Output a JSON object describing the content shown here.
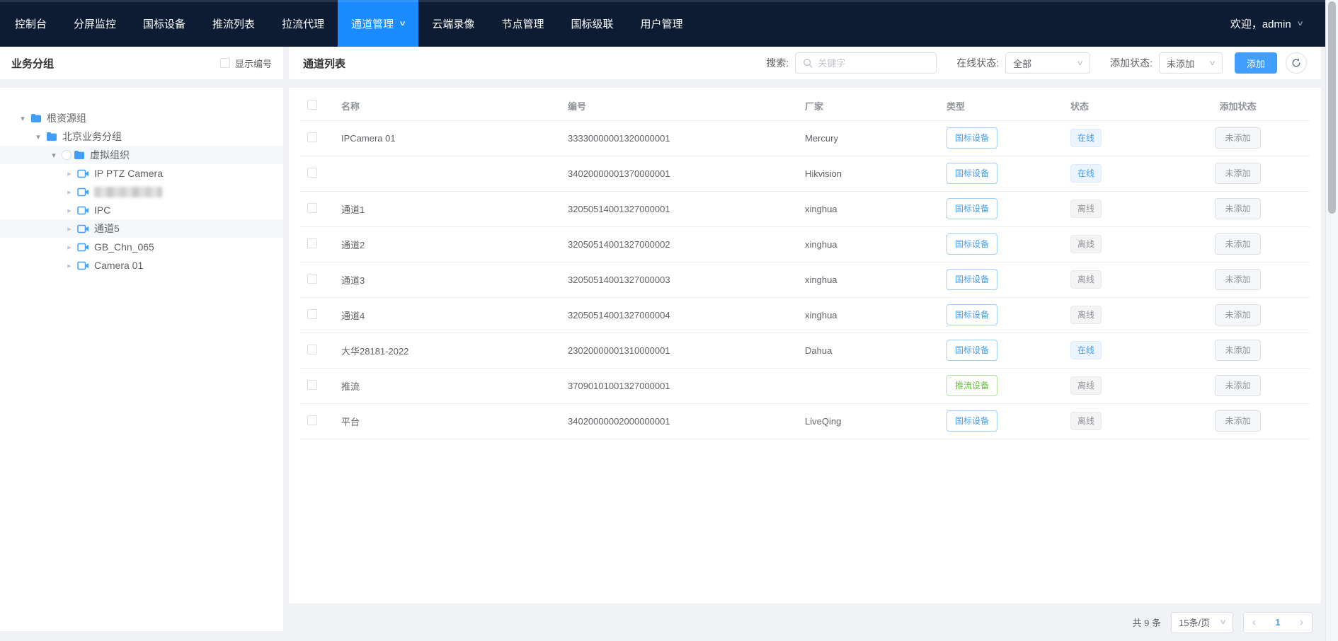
{
  "icons": {
    "chevron_down": "∨",
    "caret_expanded": "▾",
    "caret_collapsed": "▸",
    "prev_arrow": "‹",
    "next_arrow": "›"
  },
  "colors": {
    "accent": "#409eff",
    "nav_bg": "#0d1b33",
    "nav_active": "#1a8cff",
    "success_green": "#67c23a",
    "offline_gray": "#909399",
    "page_bg": "#f0f2f5"
  },
  "nav": {
    "items": [
      {
        "label": "控制台",
        "active": false
      },
      {
        "label": "分屏监控",
        "active": false
      },
      {
        "label": "国标设备",
        "active": false
      },
      {
        "label": "推流列表",
        "active": false
      },
      {
        "label": "拉流代理",
        "active": false
      },
      {
        "label": "通道管理",
        "active": true,
        "has_chevron": true
      },
      {
        "label": "云端录像",
        "active": false
      },
      {
        "label": "节点管理",
        "active": false
      },
      {
        "label": "国标级联",
        "active": false
      },
      {
        "label": "用户管理",
        "active": false
      }
    ],
    "user": {
      "welcome": "欢迎，admin"
    }
  },
  "sidebar": {
    "title": "业务分组",
    "show_number_label": "显示编号",
    "show_number_checked": false,
    "tree": [
      {
        "label": "根资源组",
        "level": 0,
        "kind": "folder",
        "expanded": true,
        "highlighted": false,
        "radio": false,
        "redacted": false
      },
      {
        "label": "北京业务分组",
        "level": 1,
        "kind": "folder",
        "expanded": true,
        "highlighted": false,
        "radio": false,
        "redacted": false
      },
      {
        "label": "虚拟组织",
        "level": 2,
        "kind": "folder",
        "expanded": true,
        "highlighted": true,
        "radio": true,
        "redacted": false
      },
      {
        "label": "IP PTZ Camera",
        "level": 3,
        "kind": "camera",
        "expanded": false,
        "highlighted": false,
        "radio": false,
        "redacted": false
      },
      {
        "label": "",
        "level": 3,
        "kind": "camera",
        "expanded": false,
        "highlighted": false,
        "radio": false,
        "redacted": true
      },
      {
        "label": "IPC",
        "level": 3,
        "kind": "camera",
        "expanded": false,
        "highlighted": false,
        "radio": false,
        "redacted": false
      },
      {
        "label": "通道5",
        "level": 3,
        "kind": "camera",
        "expanded": false,
        "highlighted": true,
        "radio": false,
        "redacted": false
      },
      {
        "label": "GB_Chn_065",
        "level": 3,
        "kind": "camera",
        "expanded": false,
        "highlighted": false,
        "radio": false,
        "redacted": false
      },
      {
        "label": "Camera 01",
        "level": 3,
        "kind": "camera",
        "expanded": false,
        "highlighted": false,
        "radio": false,
        "redacted": false
      }
    ]
  },
  "main": {
    "title": "通道列表",
    "filters": {
      "search_label": "搜索:",
      "search_placeholder": "关键字",
      "search_value": "",
      "online_label": "在线状态:",
      "online_value": "全部",
      "added_label": "添加状态:",
      "added_value": "未添加",
      "add_button": "添加"
    },
    "table": {
      "columns": [
        "名称",
        "编号",
        "厂家",
        "类型",
        "状态",
        "添加状态"
      ],
      "rows": [
        {
          "name": "IPCamera 01",
          "id": "33330000001320000001",
          "vendor": "Mercury",
          "type": "国标设备",
          "type_color": "blue",
          "status": "在线",
          "online": true,
          "added": "未添加"
        },
        {
          "name": "",
          "id": "34020000001370000001",
          "vendor": "Hikvision",
          "type": "国标设备",
          "type_color": "blue",
          "status": "在线",
          "online": true,
          "added": "未添加"
        },
        {
          "name": "通道1",
          "id": "32050514001327000001",
          "vendor": "xinghua",
          "type": "国标设备",
          "type_color": "blue",
          "status": "离线",
          "online": false,
          "added": "未添加"
        },
        {
          "name": "通道2",
          "id": "32050514001327000002",
          "vendor": "xinghua",
          "type": "国标设备",
          "type_color": "blue",
          "status": "离线",
          "online": false,
          "added": "未添加"
        },
        {
          "name": "通道3",
          "id": "32050514001327000003",
          "vendor": "xinghua",
          "type": "国标设备",
          "type_color": "blue",
          "status": "离线",
          "online": false,
          "added": "未添加"
        },
        {
          "name": "通道4",
          "id": "32050514001327000004",
          "vendor": "xinghua",
          "type": "国标设备",
          "type_color": "blue",
          "status": "离线",
          "online": false,
          "added": "未添加"
        },
        {
          "name": "大华28181-2022",
          "id": "23020000001310000001",
          "vendor": "Dahua",
          "type": "国标设备",
          "type_color": "blue",
          "status": "在线",
          "online": true,
          "added": "未添加"
        },
        {
          "name": "推流",
          "id": "37090101001327000001",
          "vendor": "",
          "type": "推流设备",
          "type_color": "green",
          "status": "离线",
          "online": false,
          "added": "未添加"
        },
        {
          "name": "平台",
          "id": "34020000002000000001",
          "vendor": "LiveQing",
          "type": "国标设备",
          "type_color": "blue",
          "status": "离线",
          "online": false,
          "added": "未添加"
        }
      ]
    },
    "pagination": {
      "total": "共 9 条",
      "page_size": "15条/页",
      "current_page": "1"
    }
  }
}
